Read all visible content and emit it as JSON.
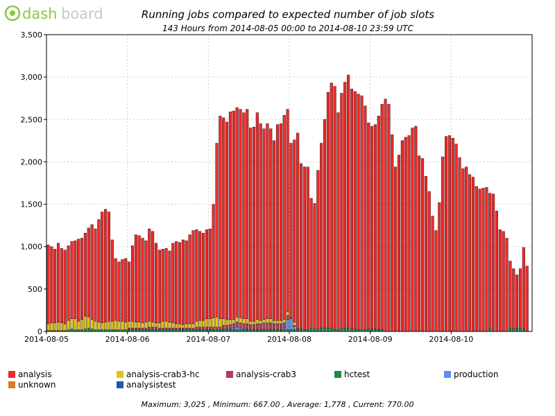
{
  "header": {
    "title": "Running jobs compared to expected number of job slots",
    "subtitle": "143 Hours from 2014-08-05 00:00 to 2014-08-10 23:59 UTC"
  },
  "footer": {
    "stats": "Maximum: 3,025 , Minimum: 667.00 , Average: 1,778 , Current: 770.00"
  },
  "chart_data": {
    "type": "bar",
    "stacked": true,
    "xlabel": "",
    "ylabel": "",
    "ylim": [
      0,
      3500
    ],
    "yticks": [
      0,
      500,
      1000,
      1500,
      2000,
      2500,
      3000,
      3500
    ],
    "ytick_labels": [
      "0",
      "500",
      "1,000",
      "1,500",
      "2,000",
      "2,500",
      "3,000",
      "3,500"
    ],
    "xticks": [
      {
        "hour": 0,
        "label": "2014-08-05"
      },
      {
        "hour": 24,
        "label": "2014-08-06"
      },
      {
        "hour": 48,
        "label": "2014-08-07"
      },
      {
        "hour": 72,
        "label": "2014-08-08"
      },
      {
        "hour": 96,
        "label": "2014-08-09"
      },
      {
        "hour": 120,
        "label": "2014-08-10"
      }
    ],
    "hours": 144,
    "grid": true,
    "legend_position": "bottom",
    "totals": [
      1020,
      1000,
      970,
      1040,
      980,
      960,
      1010,
      1060,
      1070,
      1090,
      1100,
      1160,
      1220,
      1260,
      1210,
      1320,
      1410,
      1440,
      1410,
      1080,
      860,
      820,
      850,
      860,
      820,
      1010,
      1140,
      1130,
      1100,
      1070,
      1210,
      1180,
      1040,
      960,
      970,
      980,
      950,
      1040,
      1060,
      1050,
      1080,
      1070,
      1140,
      1190,
      1200,
      1180,
      1160,
      1200,
      1210,
      1500,
      2220,
      2540,
      2520,
      2470,
      2590,
      2600,
      2640,
      2620,
      2580,
      2620,
      2400,
      2410,
      2580,
      2450,
      2390,
      2450,
      2390,
      2250,
      2440,
      2450,
      2550,
      2620,
      2220,
      2260,
      2340,
      1980,
      1940,
      1940,
      1570,
      1510,
      1900,
      2220,
      2500,
      2820,
      2930,
      2890,
      2580,
      2810,
      2940,
      3025,
      2860,
      2830,
      2800,
      2780,
      2660,
      2460,
      2420,
      2440,
      2540,
      2680,
      2740,
      2680,
      2320,
      1940,
      2080,
      2250,
      2290,
      2310,
      2400,
      2420,
      2070,
      2040,
      1830,
      1650,
      1360,
      1190,
      1520,
      2060,
      2300,
      2310,
      2280,
      2210,
      2050,
      1920,
      1940,
      1850,
      1820,
      1710,
      1680,
      1690,
      1700,
      1630,
      1620,
      1420,
      1200,
      1180,
      1100,
      830,
      740,
      667,
      740,
      990,
      770
    ],
    "series": [
      {
        "name": "analysis",
        "color": "#ee2a2a",
        "values": "remainder"
      },
      {
        "name": "analysis-crab3-hc",
        "color": "#e6c21a",
        "values": [
          80,
          90,
          90,
          100,
          90,
          80,
          110,
          120,
          130,
          100,
          120,
          150,
          130,
          110,
          100,
          90,
          80,
          90,
          100,
          100,
          110,
          100,
          100,
          90,
          80,
          80,
          70,
          70,
          60,
          70,
          70,
          60,
          50,
          60,
          80,
          80,
          70,
          60,
          50,
          50,
          40,
          50,
          50,
          50,
          70,
          80,
          80,
          100,
          100,
          110,
          120,
          100,
          80,
          70,
          60,
          50,
          60,
          60,
          60,
          60,
          40,
          40,
          50,
          40,
          40,
          50,
          50,
          40,
          40,
          40,
          40,
          40,
          10,
          40,
          10,
          0,
          0,
          0,
          0,
          0,
          0,
          0,
          0,
          0,
          0,
          0,
          0,
          0,
          0,
          0,
          0,
          0,
          0,
          0,
          0,
          0,
          0,
          0,
          0,
          0,
          0,
          0,
          0,
          0,
          0,
          0,
          0,
          0,
          0,
          0,
          0,
          0,
          0,
          0,
          0,
          0,
          0,
          0,
          0,
          0,
          0,
          0,
          0,
          0,
          0,
          0,
          0,
          0,
          0,
          0,
          0,
          0,
          0,
          0,
          0,
          0,
          0,
          0,
          0,
          0,
          0,
          0,
          0,
          0
        ]
      },
      {
        "name": "analysis-crab3",
        "color": "#b3395a",
        "values": [
          0,
          0,
          0,
          0,
          0,
          0,
          0,
          0,
          0,
          0,
          0,
          0,
          0,
          0,
          0,
          0,
          0,
          0,
          0,
          0,
          0,
          0,
          0,
          0,
          20,
          20,
          20,
          20,
          20,
          20,
          30,
          30,
          30,
          20,
          20,
          20,
          20,
          20,
          20,
          20,
          20,
          20,
          20,
          20,
          30,
          30,
          30,
          30,
          30,
          30,
          30,
          30,
          40,
          40,
          50,
          50,
          60,
          60,
          60,
          60,
          60,
          60,
          70,
          70,
          80,
          80,
          80,
          70,
          70,
          70,
          60,
          50,
          10,
          10,
          10,
          0,
          0,
          0,
          0,
          0,
          0,
          0,
          0,
          0,
          0,
          0,
          0,
          0,
          0,
          0,
          0,
          0,
          0,
          0,
          0,
          0,
          0,
          0,
          0,
          0,
          0,
          0,
          0,
          0,
          0,
          0,
          0,
          0,
          0,
          0,
          0,
          0,
          0,
          0,
          0,
          0,
          0,
          0,
          0,
          0,
          0,
          0,
          0,
          0,
          0,
          0,
          0,
          0,
          0,
          0,
          0,
          0,
          0,
          0,
          0,
          0,
          0,
          0,
          0,
          0,
          0,
          0,
          0,
          0
        ]
      },
      {
        "name": "hctest",
        "color": "#1a8a4e",
        "values": [
          10,
          10,
          10,
          10,
          10,
          10,
          20,
          30,
          20,
          20,
          20,
          30,
          40,
          30,
          20,
          20,
          20,
          20,
          20,
          20,
          20,
          20,
          20,
          20,
          20,
          20,
          20,
          20,
          20,
          20,
          20,
          20,
          20,
          20,
          20,
          20,
          20,
          20,
          20,
          20,
          20,
          20,
          20,
          20,
          20,
          20,
          20,
          20,
          20,
          20,
          20,
          20,
          20,
          20,
          20,
          20,
          20,
          20,
          20,
          20,
          20,
          20,
          20,
          20,
          20,
          20,
          20,
          20,
          20,
          20,
          20,
          20,
          20,
          20,
          20,
          30,
          20,
          20,
          40,
          30,
          30,
          40,
          40,
          40,
          40,
          20,
          20,
          40,
          40,
          40,
          30,
          30,
          20,
          20,
          20,
          30,
          30,
          30,
          20,
          20,
          0,
          0,
          0,
          0,
          0,
          0,
          0,
          0,
          0,
          0,
          0,
          0,
          0,
          0,
          0,
          0,
          0,
          0,
          0,
          0,
          0,
          0,
          0,
          0,
          0,
          0,
          0,
          0,
          0,
          0,
          0,
          40,
          0,
          0,
          0,
          0,
          0,
          40,
          30,
          40,
          40,
          30,
          0,
          0
        ]
      },
      {
        "name": "production",
        "color": "#5b8ff0",
        "values": [
          0,
          0,
          0,
          0,
          0,
          0,
          0,
          0,
          0,
          0,
          0,
          0,
          0,
          0,
          0,
          0,
          0,
          0,
          0,
          0,
          0,
          0,
          0,
          0,
          0,
          0,
          0,
          0,
          0,
          0,
          0,
          0,
          0,
          0,
          0,
          0,
          0,
          0,
          0,
          0,
          0,
          0,
          0,
          0,
          0,
          0,
          0,
          0,
          0,
          0,
          0,
          0,
          10,
          10,
          10,
          20,
          30,
          20,
          10,
          10,
          0,
          0,
          0,
          0,
          0,
          0,
          0,
          0,
          0,
          0,
          20,
          120,
          130,
          40,
          10,
          0,
          0,
          0,
          0,
          0,
          0,
          0,
          0,
          0,
          0,
          0,
          0,
          0,
          0,
          0,
          0,
          0,
          0,
          0,
          0,
          0,
          0,
          0,
          0,
          0,
          0,
          0,
          0,
          0,
          0,
          0,
          0,
          0,
          0,
          0,
          0,
          0,
          0,
          0,
          0,
          0,
          0,
          0,
          0,
          0,
          0,
          0,
          0,
          0,
          0,
          0,
          0,
          0,
          0,
          0,
          0,
          0,
          0,
          0,
          0,
          0,
          0,
          0,
          0,
          0,
          0,
          0,
          0,
          0
        ]
      },
      {
        "name": "unknown",
        "color": "#d87a2a",
        "values": []
      },
      {
        "name": "analysistest",
        "color": "#1a5aa6",
        "values": []
      }
    ]
  }
}
